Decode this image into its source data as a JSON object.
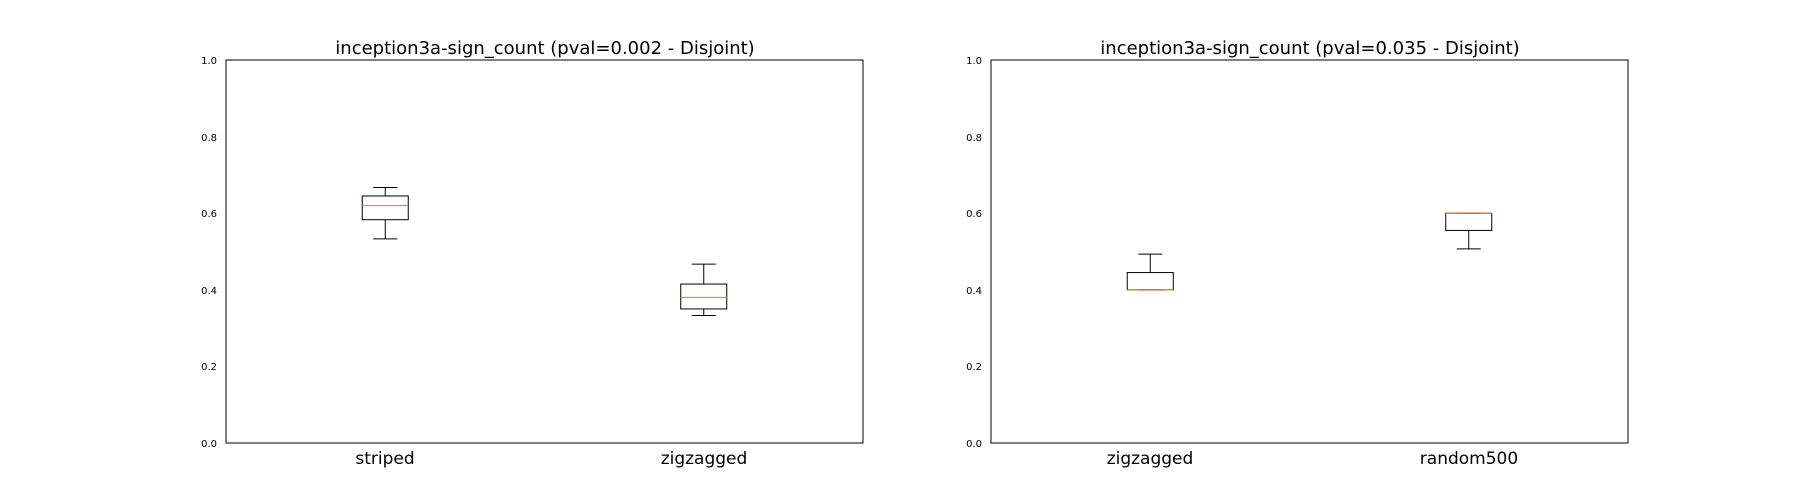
{
  "chart_data": [
    {
      "type": "box",
      "title": "inception3a-sign_count (pval=0.002 - Disjoint)",
      "xlabel": "",
      "ylabel": "",
      "ylim": [
        0.0,
        1.0
      ],
      "yticks": [
        "0.0",
        "0.2",
        "0.4",
        "0.6",
        "0.8",
        "1.0"
      ],
      "grid": false,
      "categories": [
        "striped",
        "zigzagged"
      ],
      "boxes": [
        {
          "label": "striped",
          "whisker_low": 0.533,
          "q1": 0.583,
          "median": 0.62,
          "q3": 0.645,
          "whisker_high": 0.667
        },
        {
          "label": "zigzagged",
          "whisker_low": 0.333,
          "q1": 0.35,
          "median": 0.38,
          "q3": 0.415,
          "whisker_high": 0.467
        }
      ]
    },
    {
      "type": "box",
      "title": "inception3a-sign_count (pval=0.035 - Disjoint)",
      "xlabel": "",
      "ylabel": "",
      "ylim": [
        0.0,
        1.0
      ],
      "yticks": [
        "0.0",
        "0.2",
        "0.4",
        "0.6",
        "0.8",
        "1.0"
      ],
      "grid": false,
      "categories": [
        "zigzagged",
        "random500"
      ],
      "boxes": [
        {
          "label": "zigzagged",
          "whisker_low": 0.4,
          "q1": 0.4,
          "median": 0.4,
          "q3": 0.445,
          "whisker_high": 0.493
        },
        {
          "label": "random500",
          "whisker_low": 0.507,
          "q1": 0.555,
          "median": 0.6,
          "q3": 0.6,
          "whisker_high": 0.6
        }
      ]
    }
  ],
  "colors": {
    "median": "#ff7f0e",
    "box": "#000000"
  }
}
